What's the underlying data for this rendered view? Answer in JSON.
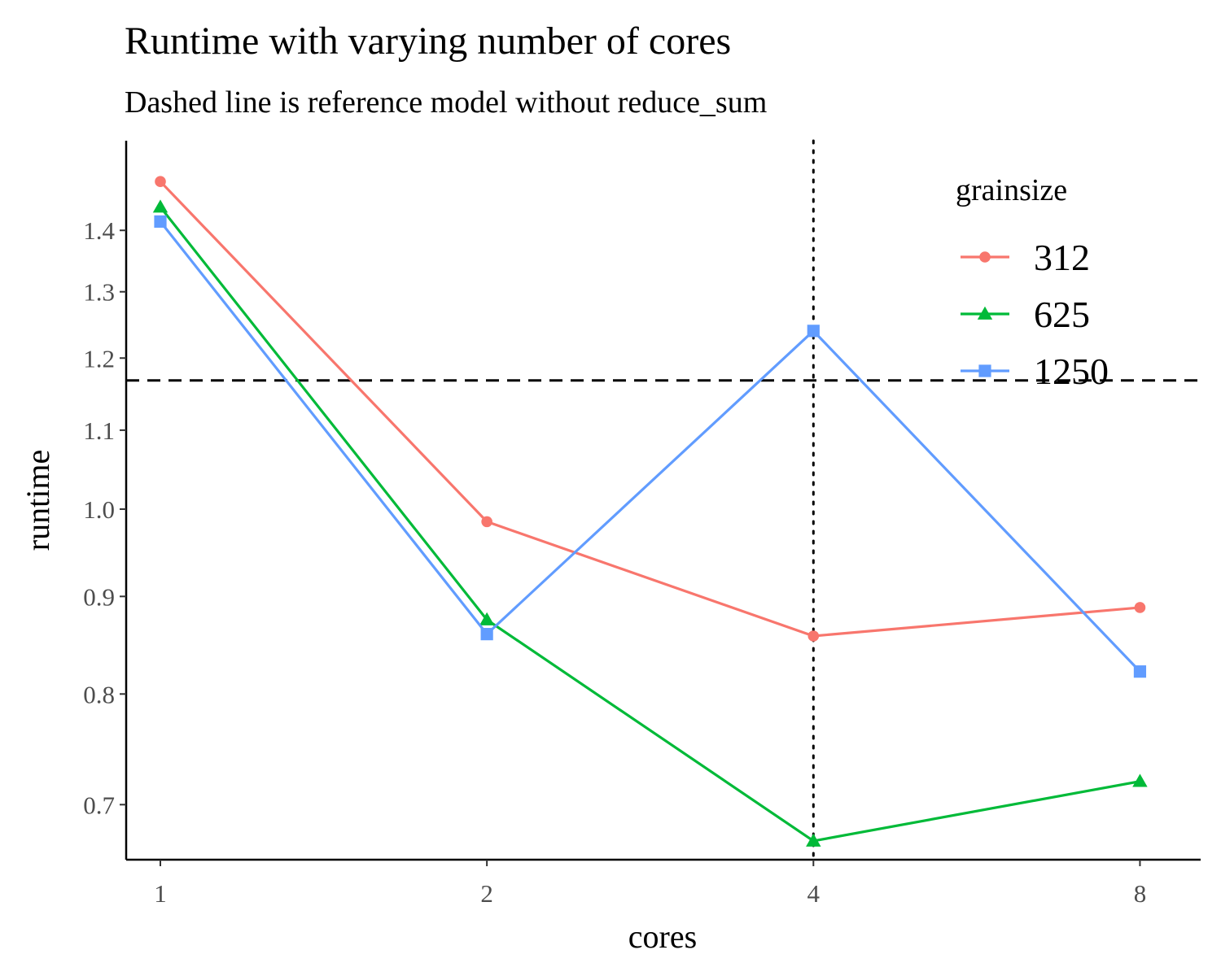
{
  "chart_data": {
    "type": "line",
    "title": "Runtime with varying number of cores",
    "subtitle": "Dashed line is reference model without reduce_sum",
    "xlabel": "cores",
    "ylabel": "runtime",
    "x_scale": "log2",
    "y_scale": "log",
    "categories": [
      1,
      2,
      4,
      8
    ],
    "xlim": [
      0.93,
      9.1
    ],
    "ylim": [
      0.655,
      1.56
    ],
    "x_ticks": [
      1,
      2,
      4,
      8
    ],
    "x_tick_labels": [
      "1",
      "2",
      "4",
      "8"
    ],
    "y_ticks": [
      0.7,
      0.8,
      0.9,
      1.0,
      1.1,
      1.2,
      1.3,
      1.4
    ],
    "y_tick_labels": [
      "0.7",
      "0.8",
      "0.9",
      "1.0",
      "1.1",
      "1.2",
      "1.3",
      "1.4"
    ],
    "grid": false,
    "legend": {
      "title": "grainsize",
      "placement": "top-right"
    },
    "series": [
      {
        "name": "312",
        "color": "#F8766D",
        "marker": "circle",
        "values": [
          1.485,
          0.985,
          0.858,
          0.888
        ]
      },
      {
        "name": "625",
        "color": "#00BA38",
        "marker": "triangle",
        "values": [
          1.44,
          0.875,
          0.67,
          0.72
        ]
      },
      {
        "name": "1250",
        "color": "#619CFF",
        "marker": "square",
        "values": [
          1.415,
          0.86,
          1.24,
          0.822
        ]
      }
    ],
    "reference_lines": [
      {
        "orientation": "horizontal",
        "style": "dashed",
        "value": 1.168,
        "color": "#000000"
      },
      {
        "orientation": "vertical",
        "style": "dotted",
        "value": 4,
        "color": "#000000"
      }
    ]
  }
}
